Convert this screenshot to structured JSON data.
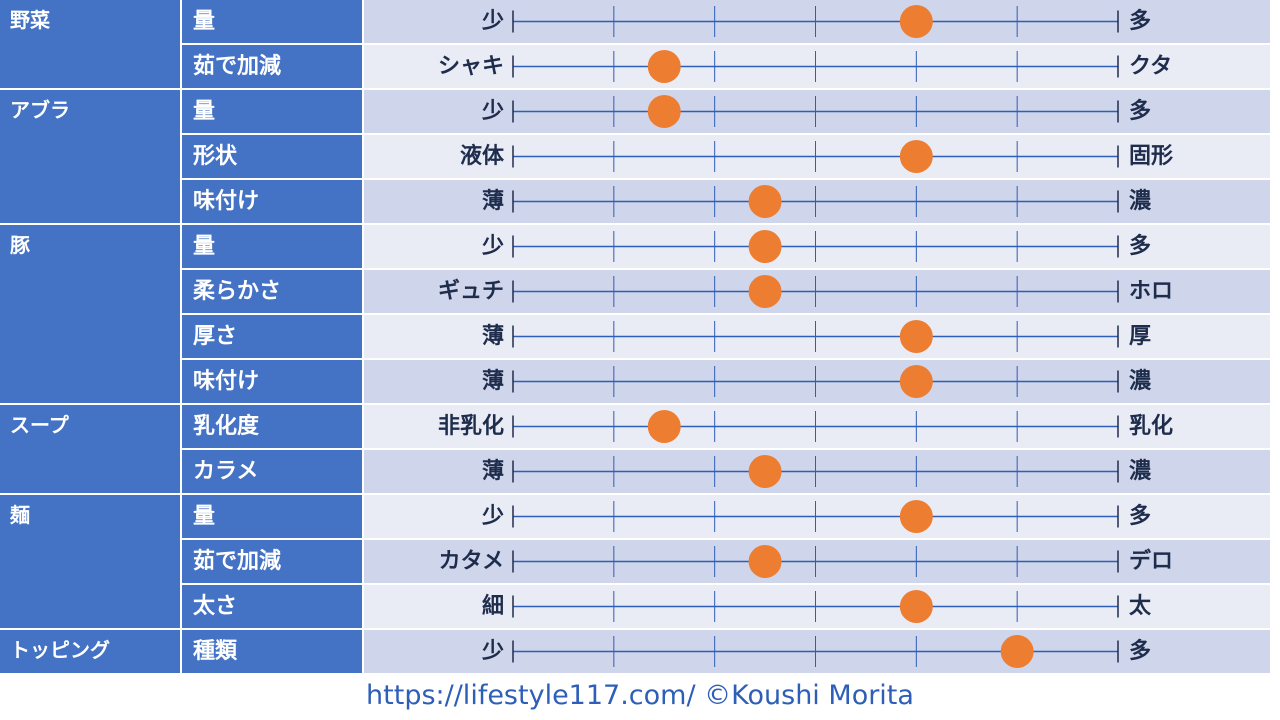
{
  "chart_data": {
    "type": "scatter",
    "scale_ticks": 6,
    "colors": {
      "category_bg": "#4472c4",
      "row_dark": "#cfd5ea",
      "row_light": "#e9ebf5",
      "scale_line": "#2e5fb8",
      "marker": "#ed7d31",
      "side_text": "#1f2d4d"
    },
    "categories": [
      {
        "name": "野菜",
        "rows": [
          {
            "item": "量",
            "left": "少",
            "right": "多",
            "value": 4
          },
          {
            "item": "茹で加減",
            "left": "シャキ",
            "right": "クタ",
            "value": 1.5
          }
        ]
      },
      {
        "name": "アブラ",
        "rows": [
          {
            "item": "量",
            "left": "少",
            "right": "多",
            "value": 1.5
          },
          {
            "item": "形状",
            "left": "液体",
            "right": "固形",
            "value": 4
          },
          {
            "item": "味付け",
            "left": "薄",
            "right": "濃",
            "value": 2.5
          }
        ]
      },
      {
        "name": "豚",
        "rows": [
          {
            "item": "量",
            "left": "少",
            "right": "多",
            "value": 2.5
          },
          {
            "item": "柔らかさ",
            "left": "ギュチ",
            "right": "ホロ",
            "value": 2.5
          },
          {
            "item": "厚さ",
            "left": "薄",
            "right": "厚",
            "value": 4
          },
          {
            "item": "味付け",
            "left": "薄",
            "right": "濃",
            "value": 4
          }
        ]
      },
      {
        "name": "スープ",
        "rows": [
          {
            "item": "乳化度",
            "left": "非乳化",
            "right": "乳化",
            "value": 1.5
          },
          {
            "item": "カラメ",
            "left": "薄",
            "right": "濃",
            "value": 2.5
          }
        ]
      },
      {
        "name": "麺",
        "rows": [
          {
            "item": "量",
            "left": "少",
            "right": "多",
            "value": 4
          },
          {
            "item": "茹で加減",
            "left": "カタメ",
            "right": "デロ",
            "value": 2.5
          },
          {
            "item": "太さ",
            "left": "細",
            "right": "太",
            "value": 4
          }
        ]
      },
      {
        "name": "トッピング",
        "rows": [
          {
            "item": "種類",
            "left": "少",
            "right": "多",
            "value": 5
          }
        ]
      }
    ]
  },
  "footer": {
    "text": "https://lifestyle117.com/  ©Koushi Morita"
  }
}
